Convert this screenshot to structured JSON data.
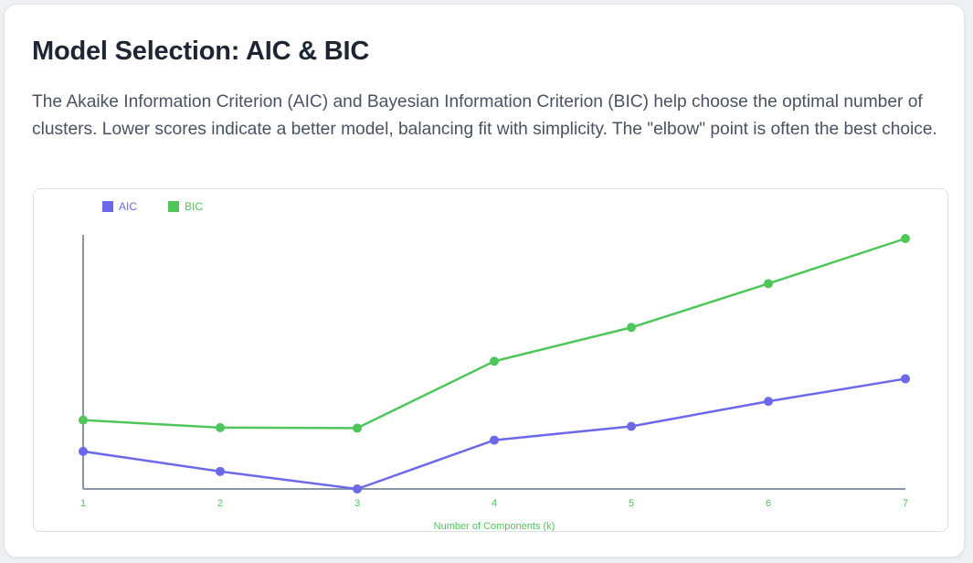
{
  "header": {
    "title": "Model Selection: AIC & BIC",
    "description": "The Akaike Information Criterion (AIC) and Bayesian Information Criterion (BIC) help choose the optimal number of clusters. Lower scores indicate a better model, balancing fit with simplicity. The \"elbow\" point is often the best choice."
  },
  "colors": {
    "aic": "#6b68ea",
    "bic": "#4fc65a",
    "axis": "#8a96a8"
  },
  "chart_data": {
    "type": "line",
    "title": "",
    "xlabel": "Number of Components (k)",
    "ylabel": "",
    "x": [
      1,
      2,
      3,
      4,
      5,
      6,
      7
    ],
    "ylim": [
      0,
      100
    ],
    "grid": false,
    "legend_position": "top-left",
    "series": [
      {
        "name": "AIC",
        "values": [
          15,
          7,
          0,
          19.5,
          25,
          35,
          44
        ]
      },
      {
        "name": "BIC",
        "values": [
          27.5,
          24.5,
          24.3,
          51,
          64.5,
          82,
          100
        ]
      }
    ]
  }
}
